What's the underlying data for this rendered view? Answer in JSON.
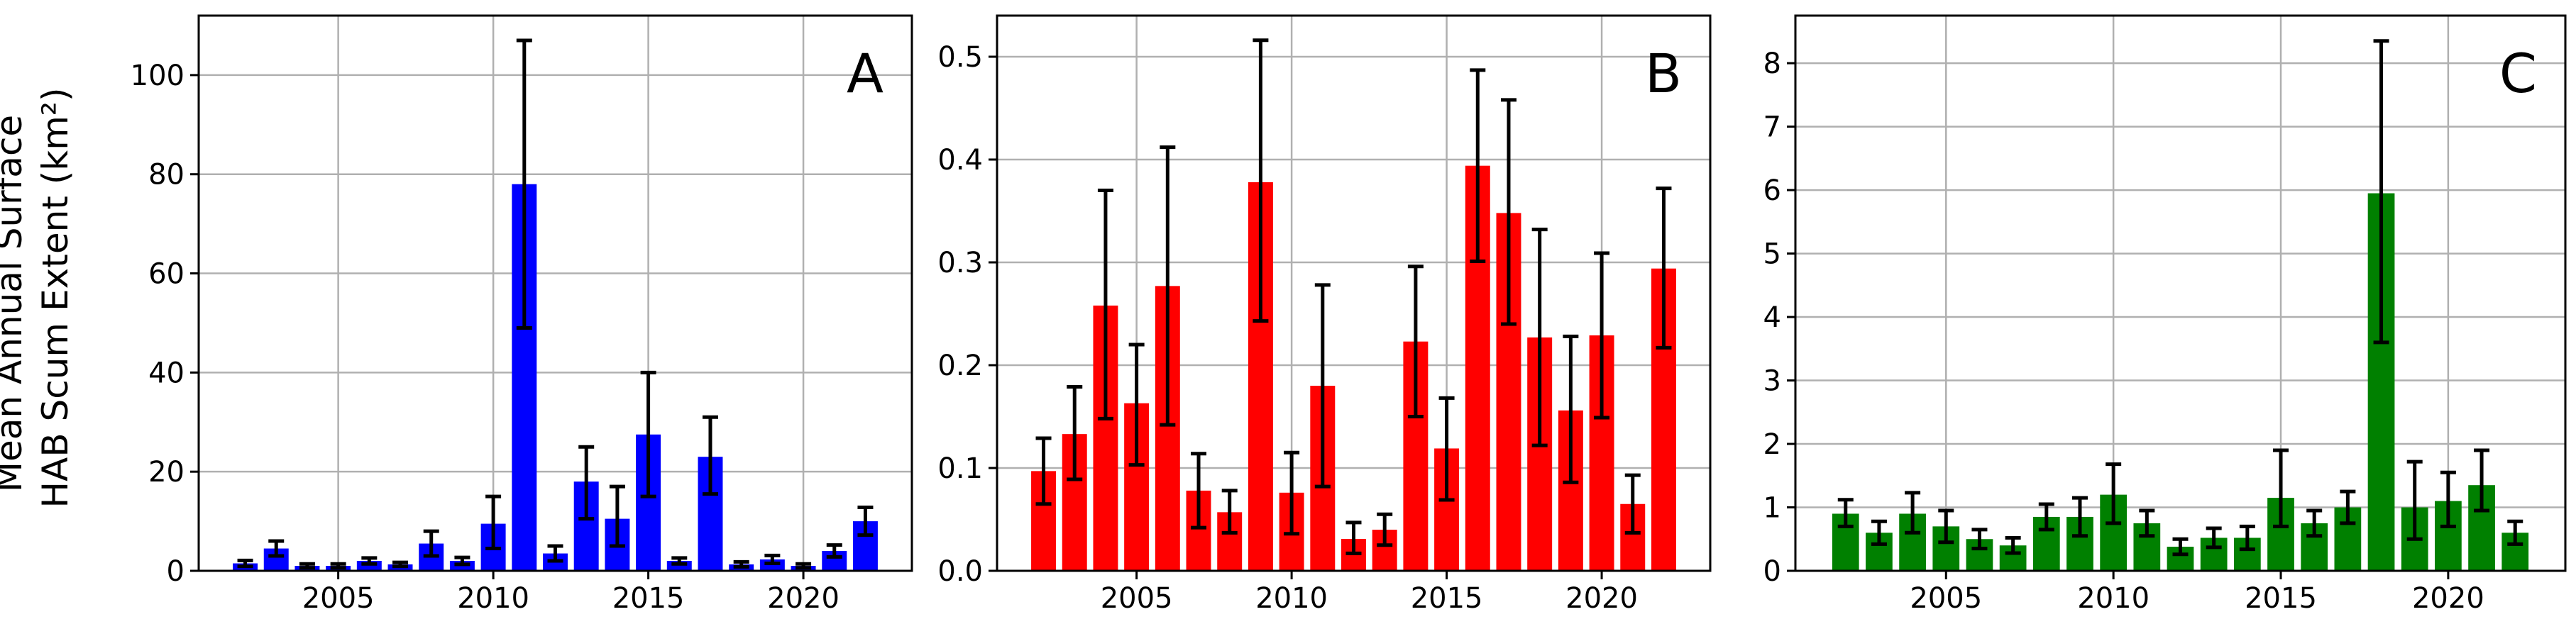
{
  "figure": {
    "ylabel_lines": [
      "Mean Annual Surface",
      "HAB Scum Extent (km²)"
    ]
  },
  "chart_data": [
    {
      "type": "bar",
      "panel_label": "A",
      "color": "#0000ff",
      "x": [
        2002,
        2003,
        2004,
        2005,
        2006,
        2007,
        2008,
        2009,
        2010,
        2011,
        2012,
        2013,
        2014,
        2015,
        2016,
        2017,
        2018,
        2019,
        2020,
        2021,
        2022
      ],
      "values": [
        1.5,
        4.5,
        1.0,
        1.0,
        2.0,
        1.3,
        5.5,
        2.0,
        9.5,
        78.0,
        3.5,
        18.0,
        10.5,
        27.5,
        2.0,
        23.0,
        1.3,
        2.3,
        1.0,
        4.0,
        10.0
      ],
      "err_low": [
        0.6,
        1.5,
        0.4,
        0.4,
        0.6,
        0.4,
        2.5,
        0.7,
        5.0,
        29.0,
        1.5,
        7.5,
        5.5,
        12.5,
        0.6,
        7.5,
        0.5,
        0.8,
        0.4,
        1.2,
        2.8
      ],
      "err_high": [
        0.6,
        1.5,
        0.4,
        0.4,
        0.6,
        0.4,
        2.5,
        0.7,
        5.5,
        29.0,
        1.5,
        7.0,
        6.5,
        12.5,
        0.6,
        8.0,
        0.5,
        0.8,
        0.4,
        1.2,
        2.8
      ],
      "xlim": [
        2000.5,
        2023.5
      ],
      "ylim": [
        0,
        112
      ],
      "xticks": [
        2005,
        2010,
        2015,
        2020
      ],
      "yticks": [
        0,
        20,
        40,
        60,
        80,
        100
      ],
      "ytick_labels": [
        "0",
        "20",
        "40",
        "60",
        "80",
        "100"
      ],
      "grid": true
    },
    {
      "type": "bar",
      "panel_label": "B",
      "color": "#ff0000",
      "x": [
        2002,
        2003,
        2004,
        2005,
        2006,
        2007,
        2008,
        2009,
        2010,
        2011,
        2012,
        2013,
        2014,
        2015,
        2016,
        2017,
        2018,
        2019,
        2020,
        2021,
        2022
      ],
      "values": [
        0.097,
        0.133,
        0.258,
        0.163,
        0.277,
        0.078,
        0.057,
        0.378,
        0.076,
        0.18,
        0.031,
        0.04,
        0.223,
        0.119,
        0.394,
        0.348,
        0.227,
        0.156,
        0.229,
        0.065,
        0.294
      ],
      "err_low": [
        0.032,
        0.044,
        0.11,
        0.06,
        0.135,
        0.036,
        0.02,
        0.135,
        0.04,
        0.098,
        0.014,
        0.015,
        0.073,
        0.05,
        0.093,
        0.108,
        0.105,
        0.07,
        0.08,
        0.028,
        0.077
      ],
      "err_high": [
        0.032,
        0.046,
        0.112,
        0.057,
        0.135,
        0.036,
        0.021,
        0.138,
        0.039,
        0.098,
        0.016,
        0.015,
        0.073,
        0.049,
        0.093,
        0.11,
        0.105,
        0.072,
        0.08,
        0.028,
        0.078
      ],
      "xlim": [
        2000.5,
        2023.5
      ],
      "ylim": [
        0,
        0.54
      ],
      "xticks": [
        2005,
        2010,
        2015,
        2020
      ],
      "yticks": [
        0,
        0.1,
        0.2,
        0.3,
        0.4,
        0.5
      ],
      "ytick_labels": [
        "0.0",
        "0.1",
        "0.2",
        "0.3",
        "0.4",
        "0.5"
      ],
      "grid": true
    },
    {
      "type": "bar",
      "panel_label": "C",
      "color": "#008000",
      "x": [
        2002,
        2003,
        2004,
        2005,
        2006,
        2007,
        2008,
        2009,
        2010,
        2011,
        2012,
        2013,
        2014,
        2015,
        2016,
        2017,
        2018,
        2019,
        2020,
        2021,
        2022
      ],
      "values": [
        0.9,
        0.6,
        0.9,
        0.7,
        0.5,
        0.4,
        0.85,
        0.85,
        1.2,
        0.75,
        0.38,
        0.52,
        0.52,
        1.15,
        0.75,
        1.0,
        5.95,
        1.0,
        1.1,
        1.35,
        0.6
      ],
      "err_low": [
        0.2,
        0.18,
        0.3,
        0.25,
        0.15,
        0.12,
        0.2,
        0.3,
        0.45,
        0.2,
        0.12,
        0.15,
        0.18,
        0.45,
        0.2,
        0.25,
        2.35,
        0.5,
        0.4,
        0.4,
        0.18
      ],
      "err_high": [
        0.22,
        0.18,
        0.33,
        0.25,
        0.15,
        0.12,
        0.2,
        0.3,
        0.48,
        0.2,
        0.12,
        0.15,
        0.18,
        0.75,
        0.2,
        0.25,
        2.4,
        0.72,
        0.45,
        0.55,
        0.18
      ],
      "xlim": [
        2000.5,
        2023.5
      ],
      "ylim": [
        0,
        8.75
      ],
      "xticks": [
        2005,
        2010,
        2015,
        2020
      ],
      "yticks": [
        0,
        1,
        2,
        3,
        4,
        5,
        6,
        7,
        8
      ],
      "ytick_labels": [
        "0",
        "1",
        "2",
        "3",
        "4",
        "5",
        "6",
        "7",
        "8"
      ],
      "grid": true
    }
  ]
}
